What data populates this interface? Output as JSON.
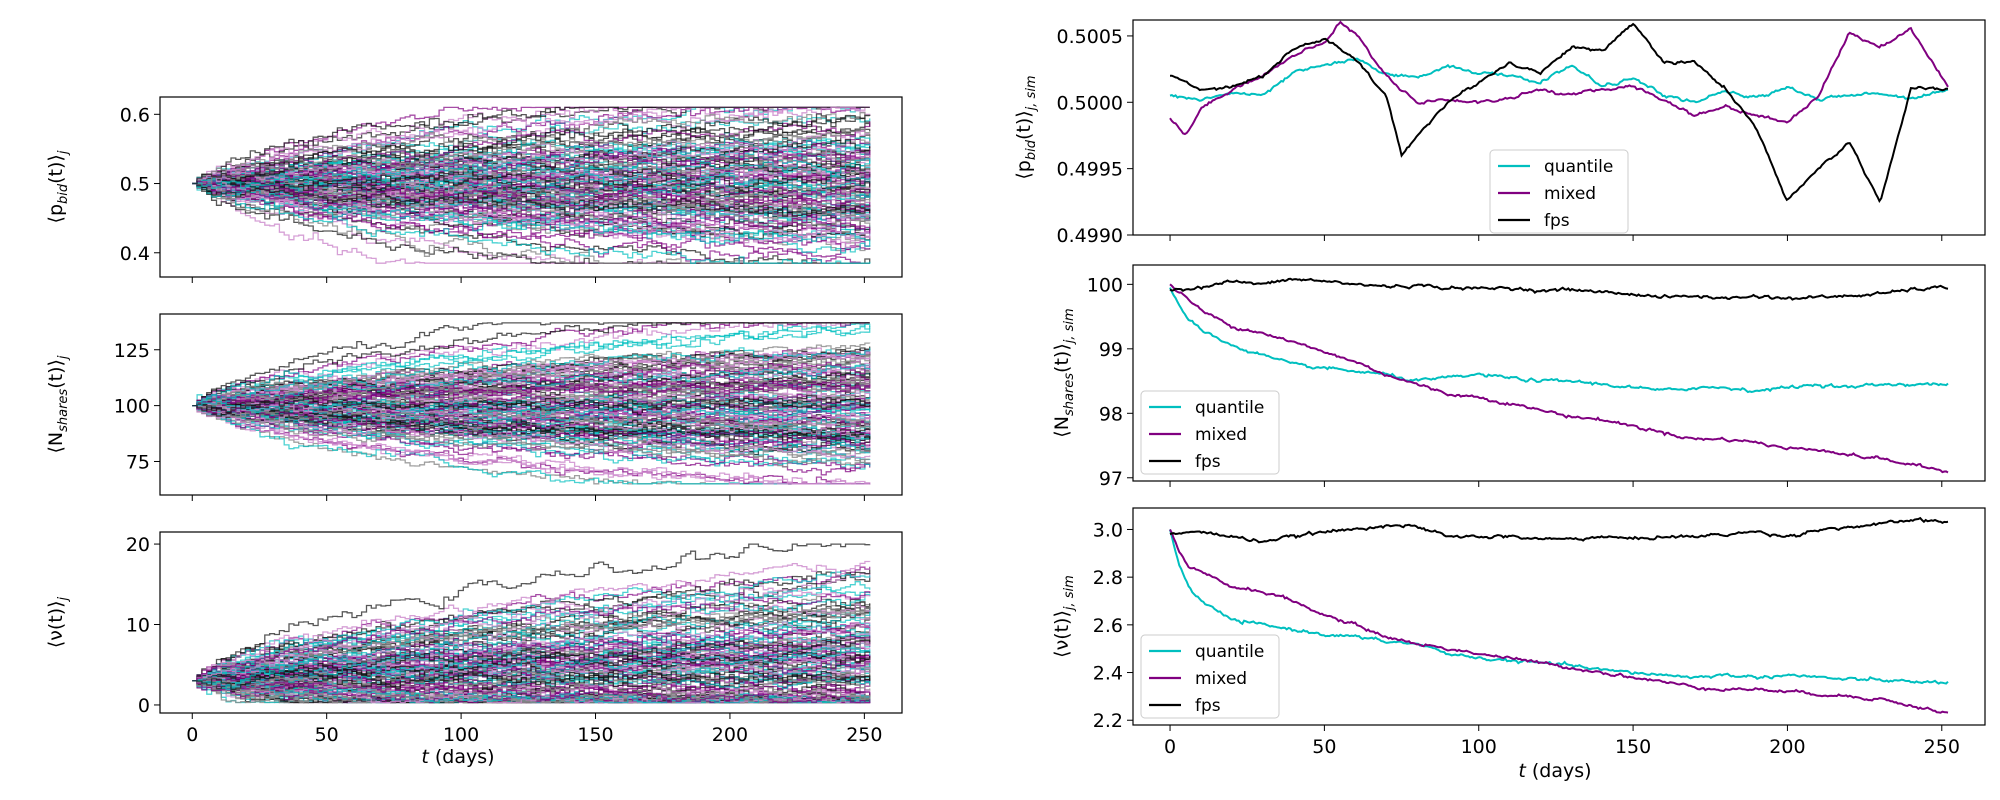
{
  "figure": {
    "x_axis_label": "t (days)",
    "x_axis_label_italic": "t",
    "x_axis_label_rest": " (days)"
  },
  "chart_data": [
    {
      "id": "left-pbid",
      "type": "line",
      "description": "ensemble of simulated paths",
      "ylabel": "⟨p_bid(t)⟩_j",
      "ylabel_main": "⟨p",
      "ylabel_sub": "bid",
      "ylabel_rest": "(t)⟩",
      "ylabel_tail": "j",
      "x_range": [
        0,
        252
      ],
      "xlim": [
        -12,
        264
      ],
      "ylim": [
        0.365,
        0.625
      ],
      "yticks": [
        0.4,
        0.5,
        0.6
      ],
      "ytick_labels": [
        "0.4",
        "0.5",
        "0.6"
      ],
      "xticks": [
        0,
        50,
        100,
        150,
        200,
        250
      ],
      "xtick_labels": [
        "",
        "",
        "",
        "",
        "",
        ""
      ],
      "start": 0.5,
      "spread_end": 0.075,
      "outer_min": 0.385,
      "outer_max": 0.61,
      "series_colors": [
        "#888888",
        "#cc88cc",
        "#800080",
        "#00bfbf",
        "#111111"
      ]
    },
    {
      "id": "left-nshares",
      "type": "line",
      "description": "ensemble of simulated paths",
      "ylabel": "⟨N_shares(t)⟩_j",
      "ylabel_main": "⟨N",
      "ylabel_sub": "shares",
      "ylabel_rest": "(t)⟩",
      "ylabel_tail": "j",
      "x_range": [
        0,
        252
      ],
      "xlim": [
        -12,
        264
      ],
      "ylim": [
        60,
        141
      ],
      "yticks": [
        75,
        100,
        125
      ],
      "ytick_labels": [
        "75",
        "100",
        "125"
      ],
      "xticks": [
        0,
        50,
        100,
        150,
        200,
        250
      ],
      "xtick_labels": [
        "",
        "",
        "",
        "",
        "",
        ""
      ],
      "start": 100,
      "spread_end": 19,
      "outer_min": 65,
      "outer_max": 137,
      "series_colors": [
        "#888888",
        "#cc88cc",
        "#800080",
        "#00bfbf",
        "#111111"
      ]
    },
    {
      "id": "left-nu",
      "type": "line",
      "description": "ensemble of simulated paths",
      "ylabel": "⟨ν(t)⟩_j",
      "ylabel_main": "⟨ν(t)⟩",
      "ylabel_sub": "",
      "ylabel_rest": "",
      "ylabel_tail": "j",
      "x_range": [
        0,
        252
      ],
      "xlim": [
        -12,
        264
      ],
      "ylim": [
        -1,
        21.5
      ],
      "yticks": [
        0,
        10,
        20
      ],
      "ytick_labels": [
        "0",
        "10",
        "20"
      ],
      "xticks": [
        0,
        50,
        100,
        150,
        200,
        250
      ],
      "xtick_labels": [
        "0",
        "50",
        "100",
        "150",
        "200",
        "250"
      ],
      "start": 3,
      "spread_end": 6,
      "outer_min": 0.3,
      "outer_max": 20,
      "series_colors": [
        "#888888",
        "#cc88cc",
        "#800080",
        "#00bfbf",
        "#111111"
      ]
    },
    {
      "id": "right-pbid",
      "type": "line",
      "ylabel": "⟨p_bid(t)⟩_j, sim",
      "ylabel_main": "⟨p",
      "ylabel_sub": "bid",
      "ylabel_rest": "(t)⟩",
      "ylabel_tail": "j, sim",
      "x_range": [
        0,
        252
      ],
      "xlim": [
        -12,
        264
      ],
      "ylim": [
        0.499,
        0.50062
      ],
      "yticks": [
        0.499,
        0.4995,
        0.5,
        0.5005
      ],
      "ytick_labels": [
        "0.4990",
        "0.4995",
        "0.5000",
        "0.5005"
      ],
      "xticks": [
        0,
        50,
        100,
        150,
        200,
        250
      ],
      "xtick_labels": [
        "",
        "",
        "",
        "",
        "",
        ""
      ],
      "legend": [
        "quantile",
        "mixed",
        "fps"
      ],
      "legend_position": "bottom-center",
      "series": [
        {
          "name": "quantile",
          "color": "#00bfbf",
          "x": [
            0,
            10,
            20,
            30,
            40,
            50,
            60,
            70,
            80,
            90,
            100,
            110,
            120,
            130,
            140,
            150,
            160,
            170,
            180,
            190,
            200,
            210,
            220,
            230,
            240,
            252
          ],
          "values": [
            0.50005,
            0.50002,
            0.50007,
            0.50005,
            0.50022,
            0.50028,
            0.50032,
            0.50022,
            0.50018,
            0.50028,
            0.50022,
            0.5002,
            0.50015,
            0.50028,
            0.50012,
            0.50018,
            0.50005,
            0.5,
            0.50008,
            0.50003,
            0.50012,
            0.50002,
            0.50005,
            0.50007,
            0.50003,
            0.5001
          ]
        },
        {
          "name": "mixed",
          "color": "#800080",
          "x": [
            0,
            5,
            10,
            20,
            30,
            40,
            50,
            55,
            60,
            70,
            80,
            90,
            100,
            110,
            120,
            130,
            140,
            150,
            160,
            170,
            180,
            190,
            200,
            210,
            220,
            230,
            240,
            252
          ],
          "values": [
            0.49988,
            0.49975,
            0.49995,
            0.5001,
            0.5002,
            0.50035,
            0.50045,
            0.5006,
            0.50052,
            0.5002,
            0.5,
            0.50002,
            0.5,
            0.50003,
            0.5001,
            0.50005,
            0.5001,
            0.50012,
            0.50002,
            0.4999,
            0.49997,
            0.4999,
            0.49985,
            0.50005,
            0.50052,
            0.50042,
            0.50055,
            0.50012
          ]
        },
        {
          "name": "fps",
          "color": "#000000",
          "x": [
            0,
            10,
            20,
            30,
            40,
            50,
            60,
            70,
            75,
            80,
            90,
            100,
            110,
            120,
            130,
            140,
            150,
            160,
            170,
            180,
            190,
            200,
            210,
            220,
            230,
            240,
            252
          ],
          "values": [
            0.5002,
            0.5001,
            0.50012,
            0.5002,
            0.5004,
            0.50048,
            0.50032,
            0.50005,
            0.4996,
            0.49975,
            0.5,
            0.50015,
            0.5003,
            0.50022,
            0.50042,
            0.50038,
            0.5006,
            0.5003,
            0.5003,
            0.5001,
            0.4998,
            0.49925,
            0.4995,
            0.4997,
            0.49925,
            0.5001,
            0.5001
          ]
        }
      ]
    },
    {
      "id": "right-nshares",
      "type": "line",
      "ylabel": "⟨N_shares(t)⟩_j, sim",
      "ylabel_main": "⟨N",
      "ylabel_sub": "shares",
      "ylabel_rest": "(t)⟩",
      "ylabel_tail": "j, sim",
      "x_range": [
        0,
        252
      ],
      "xlim": [
        -12,
        264
      ],
      "ylim": [
        96.95,
        100.3
      ],
      "yticks": [
        97,
        98,
        99,
        100
      ],
      "ytick_labels": [
        "97",
        "98",
        "99",
        "100"
      ],
      "xticks": [
        0,
        50,
        100,
        150,
        200,
        250
      ],
      "xtick_labels": [
        "",
        "",
        "",
        "",
        "",
        ""
      ],
      "legend": [
        "quantile",
        "mixed",
        "fps"
      ],
      "legend_position": "bottom-left",
      "series": [
        {
          "name": "quantile",
          "color": "#00bfbf",
          "x": [
            0,
            5,
            10,
            20,
            30,
            40,
            50,
            60,
            70,
            80,
            90,
            100,
            110,
            120,
            130,
            140,
            150,
            160,
            170,
            180,
            190,
            200,
            210,
            220,
            230,
            240,
            252
          ],
          "values": [
            99.95,
            99.5,
            99.3,
            99.05,
            98.9,
            98.75,
            98.7,
            98.65,
            98.6,
            98.5,
            98.55,
            98.6,
            98.55,
            98.5,
            98.5,
            98.45,
            98.4,
            98.35,
            98.4,
            98.4,
            98.35,
            98.4,
            98.45,
            98.4,
            98.45,
            98.45,
            98.45
          ]
        },
        {
          "name": "mixed",
          "color": "#800080",
          "x": [
            0,
            10,
            20,
            30,
            40,
            50,
            60,
            70,
            80,
            90,
            100,
            110,
            120,
            130,
            140,
            150,
            160,
            170,
            180,
            190,
            200,
            210,
            220,
            230,
            240,
            252
          ],
          "values": [
            100.0,
            99.6,
            99.35,
            99.25,
            99.1,
            98.95,
            98.8,
            98.6,
            98.45,
            98.3,
            98.25,
            98.15,
            98.05,
            97.95,
            97.9,
            97.8,
            97.7,
            97.6,
            97.6,
            97.55,
            97.45,
            97.45,
            97.35,
            97.3,
            97.2,
            97.1
          ]
        },
        {
          "name": "fps",
          "color": "#000000",
          "x": [
            0,
            10,
            20,
            30,
            40,
            50,
            60,
            70,
            80,
            90,
            100,
            110,
            120,
            130,
            140,
            150,
            160,
            170,
            180,
            190,
            200,
            210,
            220,
            230,
            240,
            252
          ],
          "values": [
            99.92,
            99.95,
            100.05,
            100.0,
            100.08,
            100.05,
            100.0,
            99.97,
            99.98,
            99.95,
            99.93,
            99.95,
            99.9,
            99.92,
            99.88,
            99.85,
            99.8,
            99.82,
            99.78,
            99.82,
            99.78,
            99.8,
            99.82,
            99.85,
            99.92,
            99.95
          ]
        }
      ]
    },
    {
      "id": "right-nu",
      "type": "line",
      "ylabel": "⟨ν(t)⟩_j, sim",
      "ylabel_main": "⟨ν(t)⟩",
      "ylabel_sub": "",
      "ylabel_rest": "",
      "ylabel_tail": "j, sim",
      "x_range": [
        0,
        252
      ],
      "xlim": [
        -12,
        264
      ],
      "ylim": [
        2.18,
        3.09
      ],
      "yticks": [
        2.2,
        2.4,
        2.6,
        2.8,
        3.0
      ],
      "ytick_labels": [
        "2.2",
        "2.4",
        "2.6",
        "2.8",
        "3.0"
      ],
      "xticks": [
        0,
        50,
        100,
        150,
        200,
        250
      ],
      "xtick_labels": [
        "0",
        "50",
        "100",
        "150",
        "200",
        "250"
      ],
      "legend": [
        "quantile",
        "mixed",
        "fps"
      ],
      "legend_position": "bottom-left",
      "series": [
        {
          "name": "quantile",
          "color": "#00bfbf",
          "x": [
            0,
            3,
            6,
            10,
            15,
            20,
            30,
            40,
            50,
            60,
            70,
            80,
            90,
            100,
            110,
            120,
            130,
            140,
            150,
            160,
            170,
            180,
            190,
            200,
            210,
            220,
            230,
            240,
            252
          ],
          "values": [
            3.0,
            2.85,
            2.76,
            2.7,
            2.66,
            2.62,
            2.6,
            2.58,
            2.56,
            2.55,
            2.53,
            2.52,
            2.48,
            2.46,
            2.45,
            2.44,
            2.43,
            2.41,
            2.4,
            2.39,
            2.38,
            2.39,
            2.38,
            2.39,
            2.38,
            2.37,
            2.37,
            2.36,
            2.36
          ]
        },
        {
          "name": "mixed",
          "color": "#800080",
          "x": [
            0,
            3,
            6,
            10,
            15,
            20,
            30,
            40,
            50,
            60,
            70,
            80,
            90,
            100,
            110,
            120,
            130,
            140,
            150,
            160,
            170,
            180,
            190,
            200,
            210,
            220,
            230,
            240,
            252
          ],
          "values": [
            3.0,
            2.9,
            2.84,
            2.82,
            2.79,
            2.76,
            2.74,
            2.7,
            2.64,
            2.6,
            2.55,
            2.52,
            2.5,
            2.48,
            2.46,
            2.44,
            2.42,
            2.4,
            2.38,
            2.36,
            2.34,
            2.33,
            2.33,
            2.32,
            2.31,
            2.3,
            2.29,
            2.26,
            2.23
          ]
        },
        {
          "name": "fps",
          "color": "#000000",
          "x": [
            0,
            10,
            20,
            30,
            40,
            50,
            60,
            70,
            80,
            90,
            100,
            110,
            120,
            130,
            140,
            150,
            160,
            170,
            180,
            190,
            200,
            210,
            220,
            230,
            240,
            252
          ],
          "values": [
            2.98,
            2.99,
            2.97,
            2.95,
            2.97,
            2.99,
            3.0,
            3.02,
            3.01,
            2.97,
            2.97,
            2.97,
            2.96,
            2.96,
            2.97,
            2.96,
            2.97,
            2.97,
            2.98,
            2.99,
            2.97,
            3.0,
            3.01,
            3.02,
            3.04,
            3.03
          ]
        }
      ]
    }
  ]
}
